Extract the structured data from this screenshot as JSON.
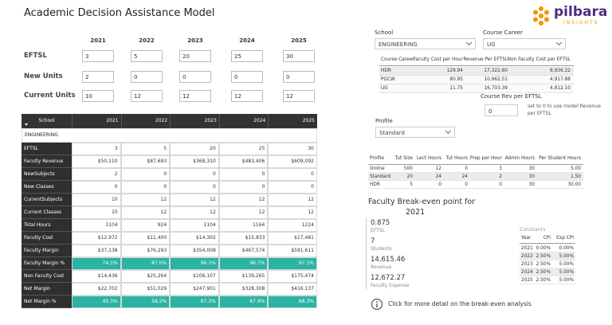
{
  "header": {
    "title": "Academic Decision Assistance Model",
    "logo_name": "pilbara",
    "logo_tagline": "INSIGHTS"
  },
  "inputs": {
    "years": [
      "2021",
      "2022",
      "2023",
      "2024",
      "2025"
    ],
    "rows": [
      {
        "label": "EFTSL",
        "values": [
          "3",
          "5",
          "20",
          "25",
          "30"
        ]
      },
      {
        "label": "New Units",
        "values": [
          "2",
          "0",
          "0",
          "0",
          "0"
        ]
      },
      {
        "label": "Current Units",
        "values": [
          "10",
          "12",
          "12",
          "12",
          "12"
        ]
      }
    ]
  },
  "table": {
    "header": [
      "School",
      "2021",
      "2022",
      "2023",
      "2024",
      "2025"
    ],
    "group": "ENGINEERING",
    "rows": [
      {
        "label": "EFTSL",
        "cells": [
          "3",
          "5",
          "20",
          "25",
          "30"
        ]
      },
      {
        "label": "Faculty Revenue",
        "cells": [
          "$50,110",
          "$87,693",
          "$368,310",
          "$483,406",
          "$609,092"
        ]
      },
      {
        "label": "NewSubjects",
        "cells": [
          "2",
          "0",
          "0",
          "0",
          "0"
        ]
      },
      {
        "label": "New Classes",
        "cells": [
          "0",
          "0",
          "0",
          "0",
          "0"
        ]
      },
      {
        "label": "CurrentSubjects",
        "cells": [
          "10",
          "12",
          "12",
          "12",
          "12"
        ]
      },
      {
        "label": "Current Classes",
        "cells": [
          "10",
          "12",
          "12",
          "12",
          "12"
        ]
      },
      {
        "label": "Total Hours",
        "cells": [
          "1104",
          "924",
          "1104",
          "1164",
          "1224"
        ]
      },
      {
        "label": "Faculty Cost",
        "cells": [
          "$12,972",
          "$11,400",
          "$14,302",
          "$15,833",
          "$17,481"
        ]
      },
      {
        "label": "Faculty Margin",
        "cells": [
          "$37,138",
          "$76,293",
          "$354,008",
          "$467,574",
          "$591,611"
        ]
      },
      {
        "label": "Faculty Margin %",
        "cells": [
          "74.1%",
          "87.0%",
          "96.1%",
          "96.7%",
          "97.1%"
        ],
        "highlight": true
      },
      {
        "label": "Non Faculty Cost",
        "cells": [
          "$14,436",
          "$25,264",
          "$106,107",
          "$139,265",
          "$175,474"
        ]
      },
      {
        "label": "Net Margin",
        "cells": [
          "$22,702",
          "$51,029",
          "$247,901",
          "$328,308",
          "$416,137"
        ]
      },
      {
        "label": "Net Margin %",
        "cells": [
          "45.3%",
          "58.2%",
          "67.3%",
          "67.9%",
          "68.3%"
        ],
        "highlight": true
      }
    ]
  },
  "filters": {
    "school": {
      "label": "School",
      "value": "ENGINEERING"
    },
    "course_career": {
      "label": "Course Career",
      "value": "UG"
    },
    "profile": {
      "label": "Profile",
      "value": "Standard"
    }
  },
  "career_table": {
    "header": [
      "Course Career",
      "Faculty Cost per Hour",
      "Revenue Per EFTSL",
      "Non Faculty Cost per EFTSL"
    ],
    "rows": [
      [
        "HDR",
        "129.94",
        "17,322.80",
        "8,936.22"
      ],
      [
        "PGCW",
        "80.95",
        "10,962.51",
        "4,917.88"
      ],
      [
        "UG",
        "11.75",
        "16,703.39",
        "4,812.10"
      ]
    ]
  },
  "course_rev": {
    "label": "Course Rev per EFTSL",
    "value": "0",
    "note": [
      "set to 0 to use model Revenue",
      "per EFTSL"
    ]
  },
  "profile_table": {
    "header": [
      "Profile",
      "Tut Size",
      "Lect Hours",
      "Tut Hours",
      "Prep per Hour",
      "Admin Hours",
      "Per Student Hours"
    ],
    "rows": [
      [
        "Online",
        "500",
        "12",
        "0",
        "3",
        "30",
        "5.00"
      ],
      [
        "Standard",
        "20",
        "24",
        "24",
        "2",
        "30",
        "1.50"
      ],
      [
        "HDR",
        "5",
        "0",
        "0",
        "0",
        "30",
        "30.00"
      ]
    ]
  },
  "breakeven": {
    "title": "Faculty Break-even point for",
    "year": "2021",
    "kpis": [
      {
        "value": "0.875",
        "label": "EFTSL"
      },
      {
        "value": "7",
        "label": "Students"
      },
      {
        "value": "14,615.46",
        "label": "Revenue"
      },
      {
        "value": "12,672.27",
        "label": "Faculty Expense"
      }
    ]
  },
  "constants": {
    "title": "Constants",
    "header": [
      "Year",
      "CPI",
      "Exp CPI"
    ],
    "rows": [
      [
        "2021",
        "0.00%",
        "0.00%"
      ],
      [
        "2022",
        "2.50%",
        "5.00%"
      ],
      [
        "2023",
        "2.50%",
        "5.00%"
      ],
      [
        "2024",
        "2.50%",
        "5.00%"
      ],
      [
        "2025",
        "2.50%",
        "5.00%"
      ]
    ]
  },
  "info": {
    "text": "Click for more detail on the break-even analysis"
  }
}
